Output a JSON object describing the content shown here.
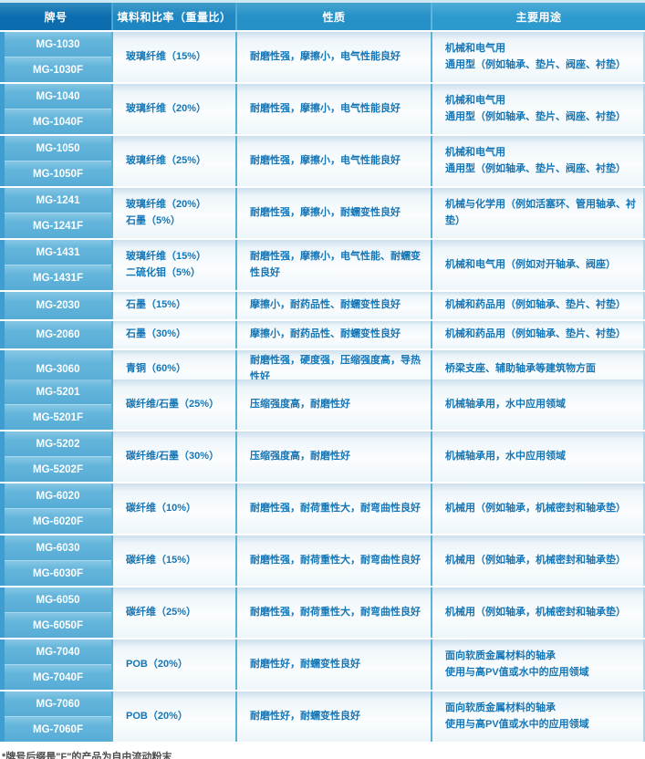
{
  "header": {
    "columns": [
      "牌号",
      "填料和比率（重量比）",
      "性质",
      "主要用途"
    ]
  },
  "rows": [
    {
      "grades": [
        "MG-1030",
        "MG-1030F"
      ],
      "filler": [
        "玻璃纤维（15%）"
      ],
      "props": [
        "耐磨性强，摩擦小，电气性能良好"
      ],
      "uses": [
        "机械和电气用",
        "通用型（例如轴承、垫片、阀座、衬垫）"
      ]
    },
    {
      "grades": [
        "MG-1040",
        "MG-1040F"
      ],
      "filler": [
        "玻璃纤维（20%）"
      ],
      "props": [
        "耐磨性强，摩擦小，电气性能良好"
      ],
      "uses": [
        "机械和电气用",
        "通用型（例如轴承、垫片、阀座、衬垫）"
      ]
    },
    {
      "grades": [
        "MG-1050",
        "MG-1050F"
      ],
      "filler": [
        "玻璃纤维（25%）"
      ],
      "props": [
        "耐磨性强，摩擦小，电气性能良好"
      ],
      "uses": [
        "机械和电气用",
        "通用型（例如轴承、垫片、阀座、衬垫）"
      ]
    },
    {
      "grades": [
        "MG-1241",
        "MG-1241F"
      ],
      "filler": [
        "玻璃纤维（20%）",
        "石墨（5%）"
      ],
      "props": [
        "耐磨性强，摩擦小，耐蠕变性良好"
      ],
      "uses": [
        "机械与化学用（例如活塞环、管用轴承、衬垫）"
      ]
    },
    {
      "grades": [
        "MG-1431",
        "MG-1431F"
      ],
      "filler": [
        "玻璃纤维（15%）",
        "二硫化钼（5%）"
      ],
      "props": [
        "耐磨性强，摩擦小，电气性能、耐蠕变性良好"
      ],
      "uses": [
        "机械和电气用（例如对开轴承、阀座）"
      ]
    },
    {
      "grades": [
        "MG-2030"
      ],
      "filler": [
        "石墨（15%）"
      ],
      "props": [
        "摩擦小，耐药品性、耐蠕变性良好"
      ],
      "uses": [
        "机械和药品用（例如轴承、垫片、衬垫）"
      ]
    },
    {
      "grades": [
        "MG-2060"
      ],
      "filler": [
        "石墨（30%）"
      ],
      "props": [
        "摩擦小，耐药品性、耐蠕变性良好"
      ],
      "uses": [
        "机械和药品用（例如轴承、垫片、衬垫）"
      ]
    },
    {
      "grades": [
        "MG-3060"
      ],
      "filler": [
        "青铜（60%）"
      ],
      "props": [
        "耐磨性强，硬度强，压缩强度高，导热性好"
      ],
      "uses": [
        "桥梁支座、辅助轴承等建筑物方面"
      ]
    },
    {
      "grades": [
        "MG-5201",
        "MG-5201F"
      ],
      "filler": [
        "碳纤维/石墨（25%）"
      ],
      "props": [
        "压缩强度高，耐磨性好"
      ],
      "uses": [
        "机械轴承用，水中应用领域"
      ]
    },
    {
      "grades": [
        "MG-5202",
        "MG-5202F"
      ],
      "filler": [
        "碳纤维/石墨（30%）"
      ],
      "props": [
        "压缩强度高，耐磨性好"
      ],
      "uses": [
        "机械轴承用，水中应用领域"
      ]
    },
    {
      "grades": [
        "MG-6020",
        "MG-6020F"
      ],
      "filler": [
        "碳纤维（10%）"
      ],
      "props": [
        "耐磨性强，耐荷重性大，耐弯曲性良好"
      ],
      "uses": [
        "机械用（例如轴承，机械密封和轴承垫）"
      ]
    },
    {
      "grades": [
        "MG-6030",
        "MG-6030F"
      ],
      "filler": [
        "碳纤维（15%）"
      ],
      "props": [
        "耐磨性强，耐荷重性大，耐弯曲性良好"
      ],
      "uses": [
        "机械用（例如轴承，机械密封和轴承垫）"
      ]
    },
    {
      "grades": [
        "MG-6050",
        "MG-6050F"
      ],
      "filler": [
        "碳纤维（25%）"
      ],
      "props": [
        "耐磨性强，耐荷重性大，耐弯曲性良好"
      ],
      "uses": [
        "机械用（例如轴承，机械密封和轴承垫）"
      ]
    },
    {
      "grades": [
        "MG-7040",
        "MG-7040F"
      ],
      "filler": [
        "POB（20%）"
      ],
      "props": [
        "耐磨性好，耐蠕变性良好"
      ],
      "uses": [
        "面向软质金属材料的轴承",
        "使用与高PV值或水中的应用领域"
      ]
    },
    {
      "grades": [
        "MG-7060",
        "MG-7060F"
      ],
      "filler": [
        "POB（20%）"
      ],
      "props": [
        "耐磨性好，耐蠕变性良好"
      ],
      "uses": [
        "面向软质金属材料的轴承",
        "使用与高PV值或水中的应用领域"
      ]
    }
  ],
  "footnote": "*牌号后缀是\"F\"的产品为自由流动粉末",
  "colors": {
    "header_grade": "#0c6cae",
    "header_filler": "#1e86c1",
    "header_props": "#2591c7",
    "header_uses": "#2d9ace",
    "grade_cell": "#64b5db",
    "left_strip": "#3f9dcf",
    "column_separator": "#58b3d5",
    "body_text": "#1576b6",
    "footnote_text": "#4d4d4d"
  }
}
